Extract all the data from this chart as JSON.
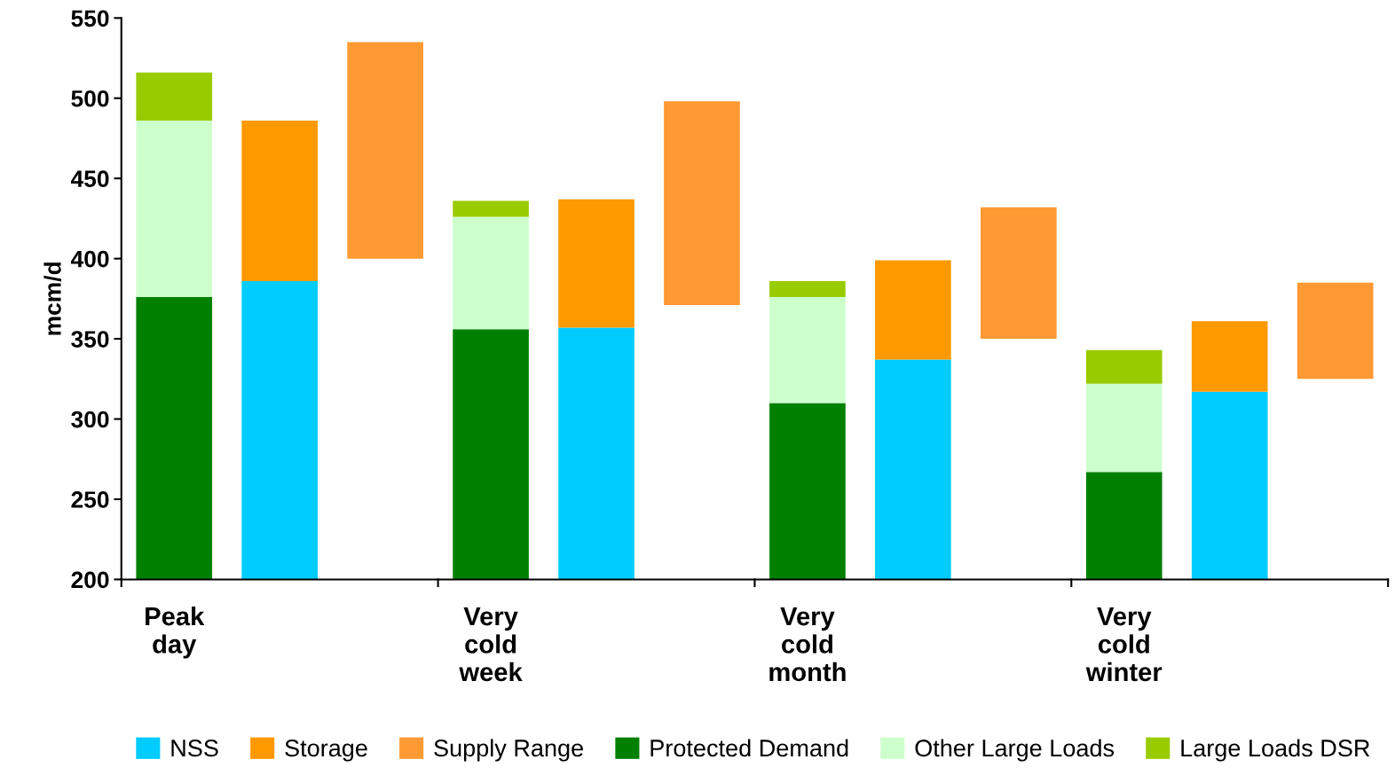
{
  "chart_data": {
    "type": "bar",
    "stacked": true,
    "ylabel": "mcm/d",
    "categories": [
      "Peak\nday",
      null,
      null,
      "Very\ncold\nweek",
      null,
      null,
      "Very\ncold\nmonth",
      null,
      null,
      "Very\ncold\nwinter",
      null,
      null
    ],
    "ylim": [
      200,
      550
    ],
    "yticks": [
      200,
      250,
      300,
      350,
      400,
      450,
      500,
      550
    ],
    "grid": false,
    "legend": "bottom",
    "series": [
      {
        "name": "NSS",
        "color": "#00ccff",
        "values": [
          null,
          386,
          null,
          null,
          357,
          null,
          null,
          337,
          null,
          null,
          317,
          null
        ]
      },
      {
        "name": "Storage",
        "color": "#ff9900",
        "base": [
          null,
          386,
          null,
          null,
          357,
          null,
          null,
          337,
          null,
          null,
          317,
          null
        ],
        "values": [
          null,
          100,
          null,
          null,
          80,
          null,
          null,
          62,
          null,
          null,
          44,
          null
        ]
      },
      {
        "name": "Supply Range",
        "color": "#ff9933",
        "base": [
          null,
          null,
          400,
          null,
          null,
          371,
          null,
          null,
          350,
          null,
          null,
          325
        ],
        "values": [
          null,
          null,
          135,
          null,
          null,
          127,
          null,
          null,
          82,
          null,
          null,
          60
        ]
      },
      {
        "name": "Protected Demand",
        "color": "#008000",
        "values": [
          376,
          null,
          null,
          356,
          null,
          null,
          310,
          null,
          null,
          267,
          null,
          null
        ]
      },
      {
        "name": "Other Large Loads",
        "color": "#ccffcc",
        "base": [
          376,
          null,
          null,
          356,
          null,
          null,
          310,
          null,
          null,
          267,
          null,
          null
        ],
        "values": [
          110,
          null,
          null,
          70,
          null,
          null,
          66,
          null,
          null,
          55,
          null,
          null
        ]
      },
      {
        "name": "Large Loads DSR",
        "color": "#99cc00",
        "base": [
          486,
          null,
          null,
          426,
          null,
          null,
          376,
          null,
          null,
          322,
          null,
          null
        ],
        "values": [
          30,
          null,
          null,
          10,
          null,
          null,
          10,
          null,
          null,
          21,
          null,
          null
        ]
      }
    ]
  }
}
